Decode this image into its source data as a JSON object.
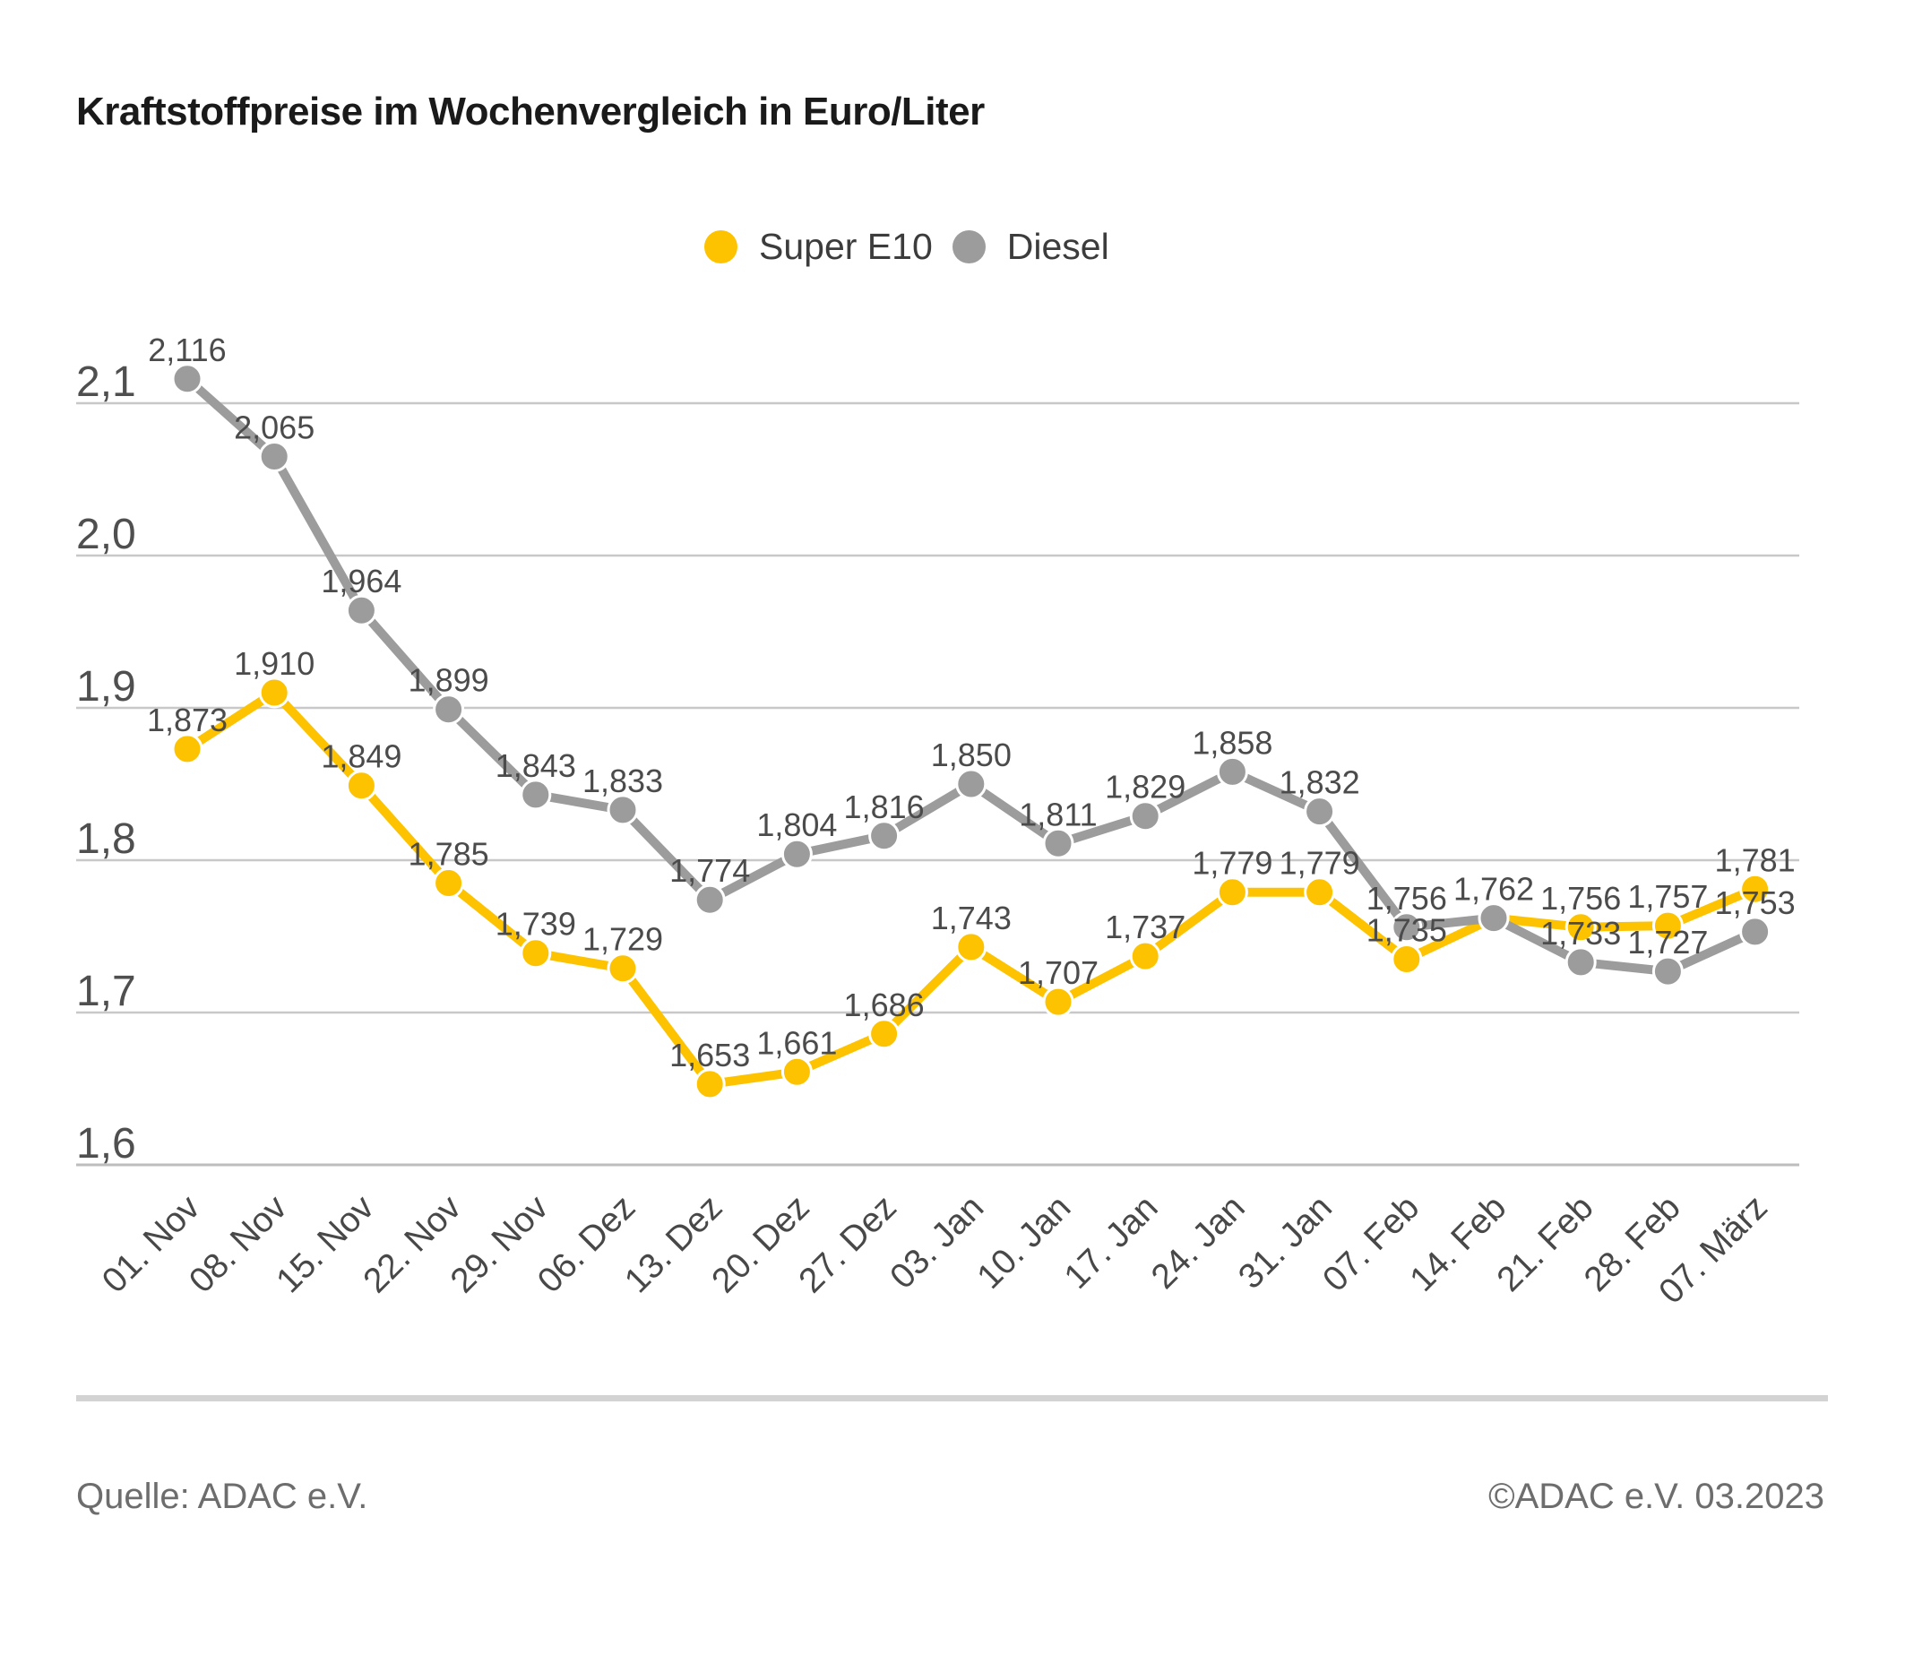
{
  "title": "Kraftstoffpreise im Wochenvergleich in Euro/Liter",
  "legend": {
    "items": [
      {
        "label": "Super E10",
        "color": "#fdc300"
      },
      {
        "label": "Diesel",
        "color": "#9c9c9c"
      }
    ]
  },
  "chart_data": {
    "type": "line",
    "title": "Kraftstoffpreise im Wochenvergleich in Euro/Liter",
    "categories": [
      "01. Nov",
      "08. Nov",
      "15. Nov",
      "22. Nov",
      "29. Nov",
      "06. Dez",
      "13. Dez",
      "20. Dez",
      "27. Dez",
      "03. Jan",
      "10. Jan",
      "17. Jan",
      "24. Jan",
      "31. Jan",
      "07. Feb",
      "14. Feb",
      "21. Feb",
      "28. Feb",
      "07. März"
    ],
    "series": [
      {
        "name": "Super E10",
        "color": "#fdc300",
        "values": [
          1.873,
          1.91,
          1.849,
          1.785,
          1.739,
          1.729,
          1.653,
          1.661,
          1.686,
          1.743,
          1.707,
          1.737,
          1.779,
          1.779,
          1.735,
          1.762,
          1.756,
          1.757,
          1.781
        ],
        "hidden_labels": [
          15
        ]
      },
      {
        "name": "Diesel",
        "color": "#9c9c9c",
        "values": [
          2.116,
          2.065,
          1.964,
          1.899,
          1.843,
          1.833,
          1.774,
          1.804,
          1.816,
          1.85,
          1.811,
          1.829,
          1.858,
          1.832,
          1.756,
          1.762,
          1.733,
          1.727,
          1.753
        ],
        "hidden_labels": []
      }
    ],
    "xlabel": "",
    "ylabel": "Euro/Liter",
    "ylim": [
      1.6,
      2.1
    ],
    "yticks": {
      "values": [
        2.1,
        2.0,
        1.9,
        1.8,
        1.7,
        1.6
      ],
      "labels": [
        "2,1",
        "2,0",
        "1,9",
        "1,8",
        "1,7",
        "1,6"
      ]
    },
    "decimal_separator": ",",
    "grid": true,
    "legend_position": "top-center",
    "data_labels": true
  },
  "footer": {
    "source": "Quelle: ADAC e.V.",
    "copyright": "©ADAC e.V. 03.2023"
  }
}
